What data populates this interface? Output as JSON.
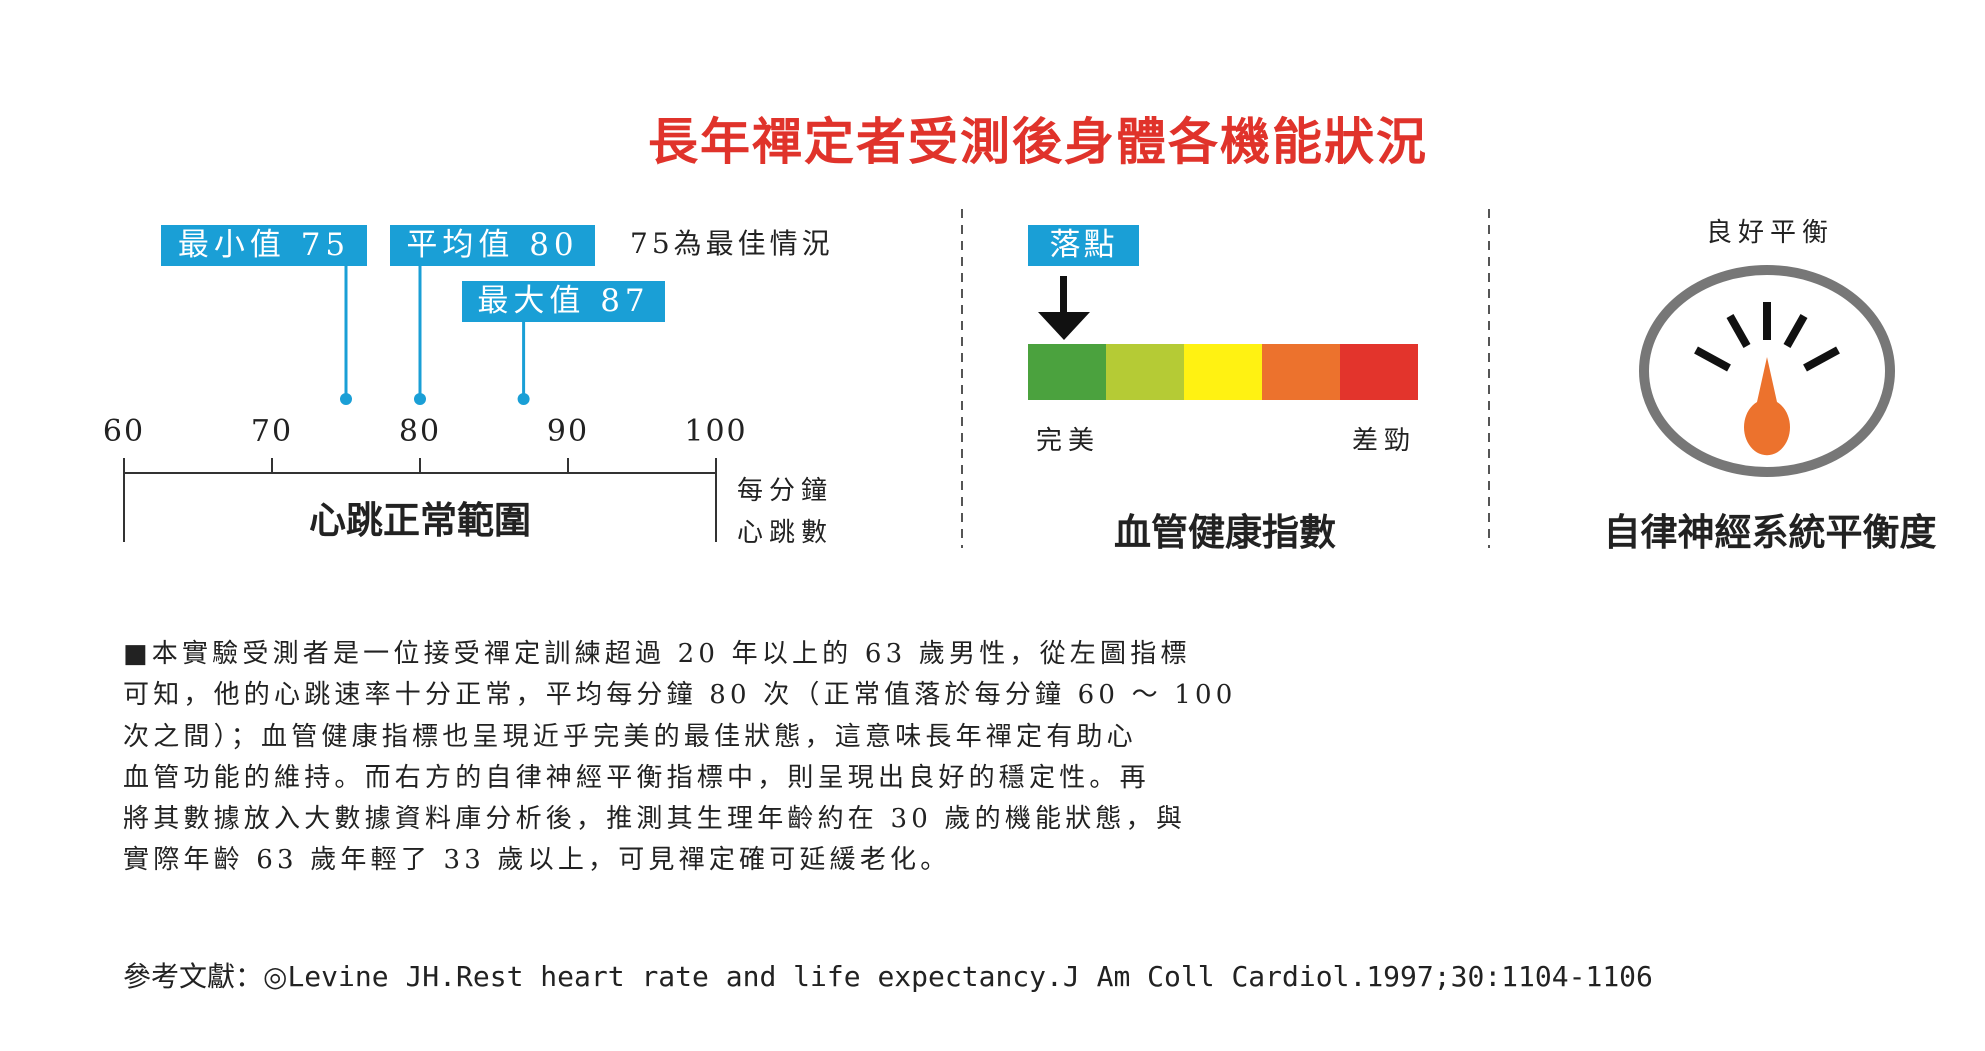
{
  "title": "長年禪定者受測後身體各機能狀況",
  "heart": {
    "markers": [
      {
        "label": "最小值 75",
        "value": 75
      },
      {
        "label": "平均值 80",
        "value": 80
      },
      {
        "label": "最大值 87",
        "value": 87
      }
    ],
    "note": "75為最佳情況",
    "ticks": [
      "60",
      "70",
      "80",
      "90",
      "100"
    ],
    "range_label": "心跳正常範圍",
    "unit_line1": "每分鐘",
    "unit_line2": "心跳數"
  },
  "vascular": {
    "pointer_label": "落點",
    "pointer_segment": 0,
    "colors": [
      "#4ba23e",
      "#b5cb35",
      "#fff212",
      "#ec722d",
      "#e3342c"
    ],
    "left_label": "完美",
    "right_label": "差勁",
    "title": "血管健康指數"
  },
  "autonomic": {
    "top_label": "良好平衡",
    "title": "自律神經系統平衡度"
  },
  "paragraph": {
    "bullet": "■",
    "lines": [
      "本實驗受測者是一位接受禪定訓練超過 20 年以上的 63 歲男性，從左圖指標",
      "可知，他的心跳速率十分正常，平均每分鐘 80 次（正常值落於每分鐘 60 ～ 100",
      "次之間）；血管健康指標也呈現近乎完美的最佳狀態，這意味長年禪定有助心",
      "血管功能的維持。而右方的自律神經平衡指標中，則呈現出良好的穩定性。再",
      "將其數據放入大數據資料庫分析後，推測其生理年齡約在 30 歲的機能狀態，與",
      "實際年齡 63 歲年輕了 33 歲以上，可見禪定確可延緩老化。"
    ]
  },
  "reference": {
    "label": "參考文獻：◎",
    "text": "Levine JH.Rest heart rate and life expectancy.J Am Coll Cardiol.1997;30:1104-1106"
  }
}
